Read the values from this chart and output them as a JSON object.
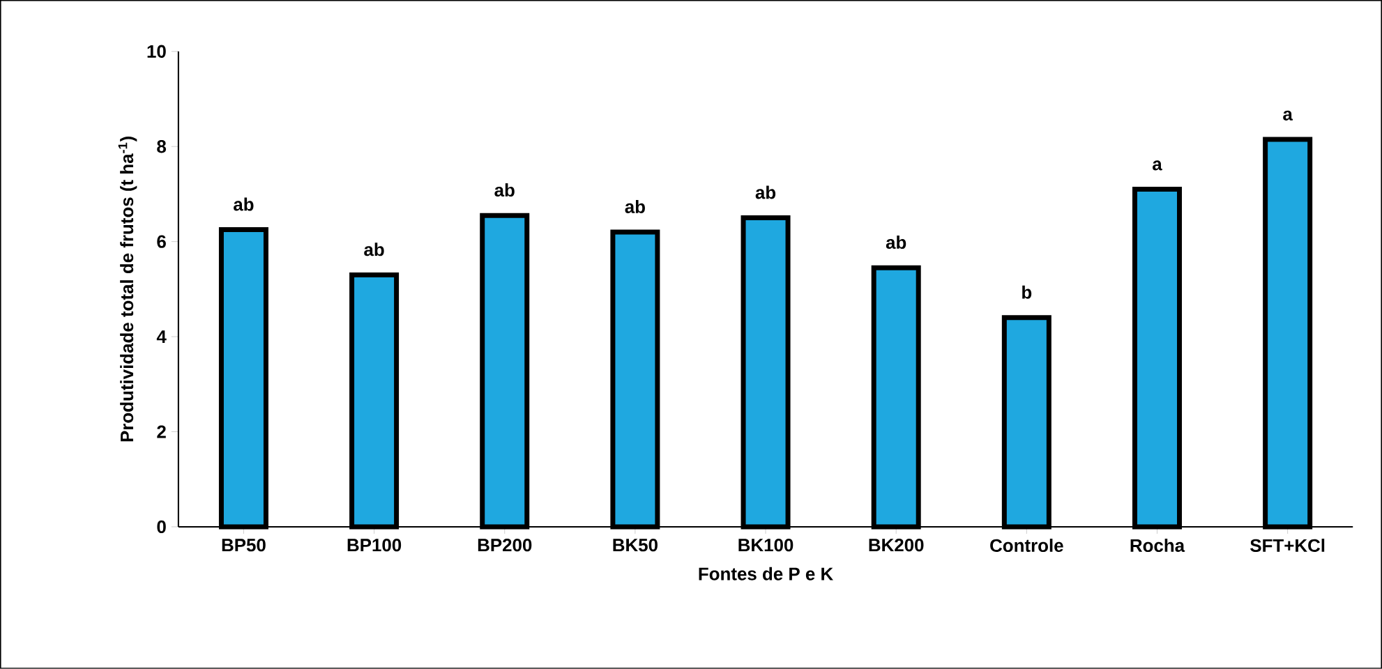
{
  "chart_data": {
    "type": "bar",
    "xlabel": "Fontes de P e K",
    "ylabel": "Produtividade total de frutos (t ha$^{-1}$)",
    "categories": [
      "BP50",
      "BP100",
      "BP200",
      "BK50",
      "BK100",
      "BK200",
      "Controle",
      "Rocha",
      "SFT+KCl"
    ],
    "values": [
      6.25,
      5.3,
      6.55,
      6.2,
      6.5,
      5.45,
      4.4,
      7.1,
      8.15
    ],
    "color": "#1fa8e0",
    "ylim": [
      0,
      10
    ],
    "yticks": [
      0,
      2,
      4,
      6,
      8,
      10
    ],
    "grid": false,
    "annotations": [
      {
        "text": "ab",
        "x": "BP50",
        "y": 6.25
      },
      {
        "text": "ab",
        "x": "BP100",
        "y": 5.3
      },
      {
        "text": "ab",
        "x": "BP200",
        "y": 6.55
      },
      {
        "text": "ab",
        "x": "BK50",
        "y": 6.2
      },
      {
        "text": "ab",
        "x": "BK100",
        "y": 6.5
      },
      {
        "text": "ab",
        "x": "BK200",
        "y": 5.45
      },
      {
        "text": "b",
        "x": "Controle",
        "y": 4.4
      },
      {
        "text": "a",
        "x": "Rocha",
        "y": 7.1
      },
      {
        "text": "a",
        "x": "SFT+KCl",
        "y": 8.15
      }
    ]
  }
}
